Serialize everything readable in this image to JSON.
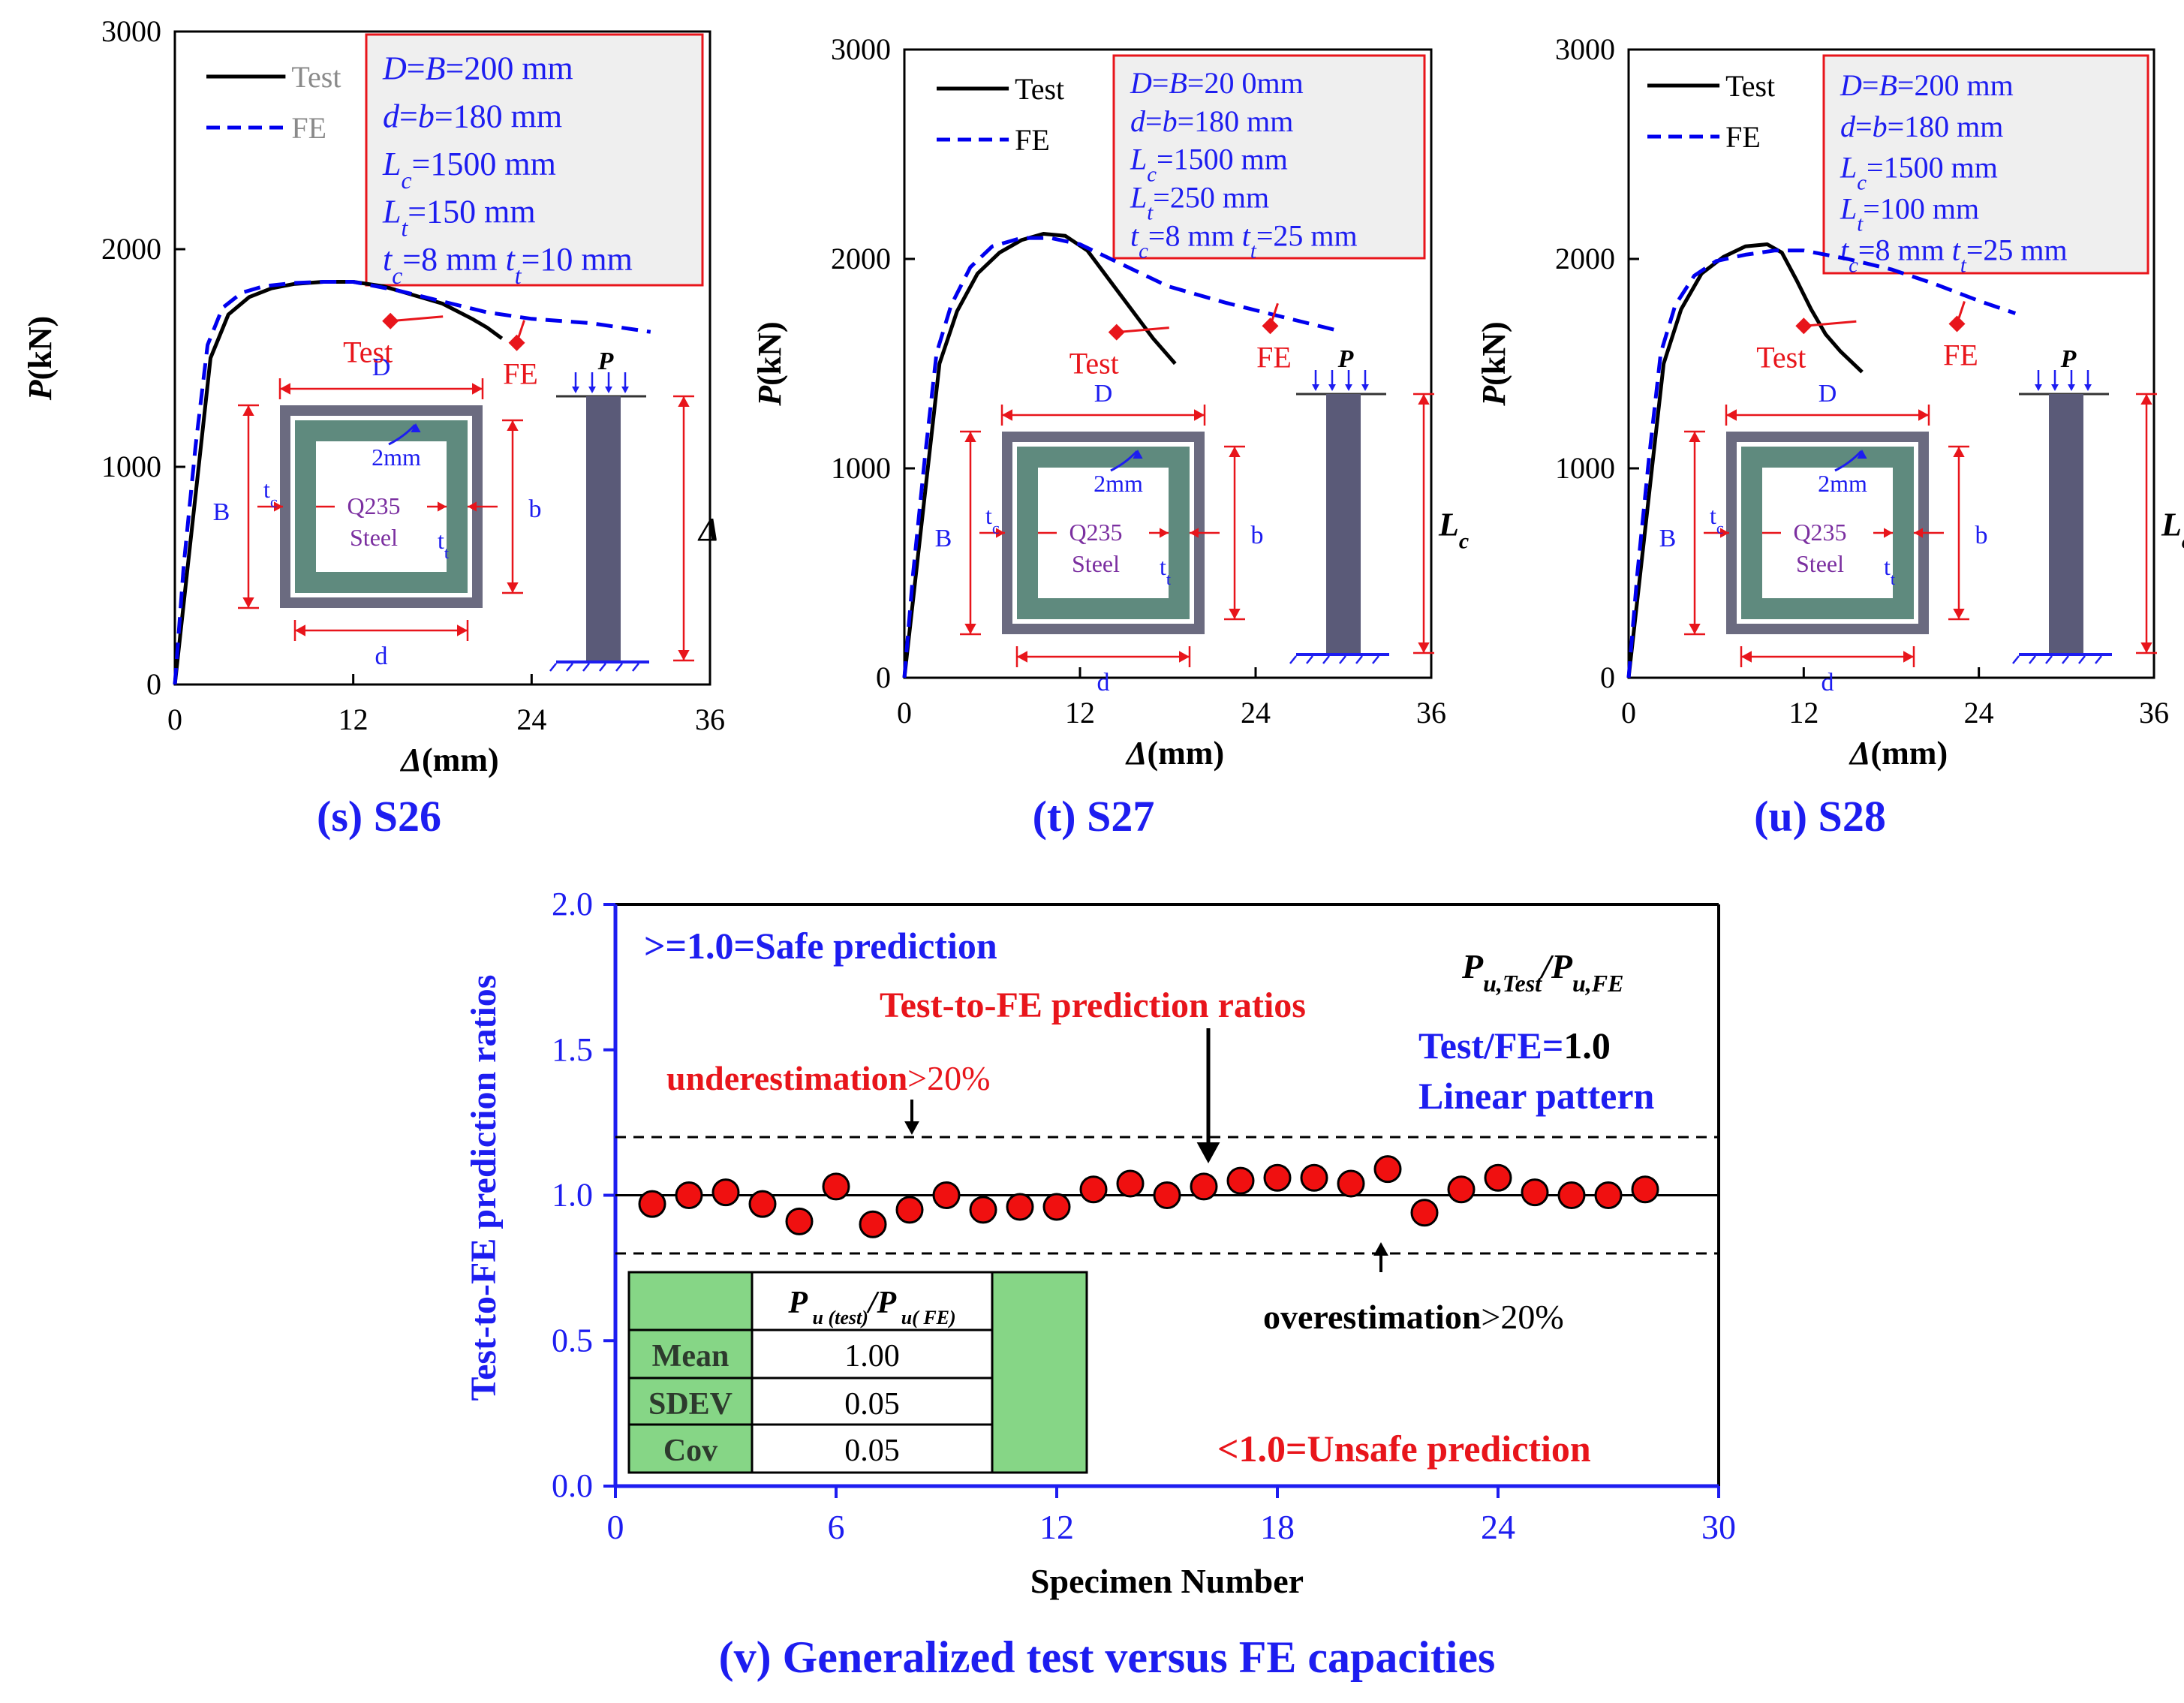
{
  "colors": {
    "test": "#000000",
    "fe": "#0000ee",
    "red": "#e8151b",
    "blue": "#1d1df0",
    "boxfill": "#efefef",
    "steel": "#5f8a7e",
    "outer": "#6b6b80",
    "table_green": "#86d686",
    "purple": "#7b2fa0",
    "col": "#5a5a78"
  },
  "chart_data": [
    {
      "id": "s",
      "type": "line",
      "caption": "(s) S26",
      "xlabel": "Δ(mm)",
      "ylabel": "P(kN)",
      "xlim": [
        0,
        36
      ],
      "ylim": [
        0,
        3000
      ],
      "xticks": [
        "0",
        "12",
        "24",
        "36"
      ],
      "yticks": [
        "0",
        "1000",
        "2000",
        "3000"
      ],
      "legend": {
        "test": "Test",
        "fe": "FE"
      },
      "info": [
        "D=B=200 mm",
        "d=b=180 mm",
        "Lc=1500 mm",
        "Lt=150 mm",
        "tc=8 mm tt=10 mm"
      ],
      "series": [
        {
          "name": "Test",
          "style": "solid",
          "x": [
            0,
            0.8,
            1.6,
            2.4,
            3.6,
            5,
            6.5,
            8,
            10,
            12,
            14,
            16,
            18,
            20,
            21,
            22
          ],
          "y": [
            0,
            500,
            1000,
            1500,
            1700,
            1780,
            1820,
            1840,
            1850,
            1850,
            1830,
            1790,
            1750,
            1680,
            1640,
            1590
          ]
        },
        {
          "name": "FE",
          "style": "dashed",
          "x": [
            0,
            0.6,
            1.4,
            2.2,
            3.2,
            4.5,
            6,
            8,
            10,
            12,
            15,
            18,
            21,
            24,
            28,
            32
          ],
          "y": [
            0,
            550,
            1100,
            1560,
            1730,
            1800,
            1830,
            1845,
            1850,
            1850,
            1810,
            1760,
            1710,
            1680,
            1660,
            1620
          ]
        }
      ],
      "annotations": [
        {
          "text": "Test",
          "x": 14.5,
          "y": 1670
        },
        {
          "text": "FE",
          "x": 23,
          "y": 1570
        }
      ],
      "inset": {
        "D": "D",
        "B": "B",
        "d": "d",
        "b": "b",
        "tc": "tc",
        "tt": "tt",
        "gap": "2mm",
        "material": [
          "Q235",
          "Steel"
        ],
        "load": "P",
        "length": "Δ"
      }
    },
    {
      "id": "t",
      "type": "line",
      "caption": "(t) S27",
      "xlabel": "Δ(mm)",
      "ylabel": "P(kN)",
      "xlim": [
        0,
        36
      ],
      "ylim": [
        0,
        3000
      ],
      "xticks": [
        "0",
        "12",
        "24",
        "36"
      ],
      "yticks": [
        "0",
        "1000",
        "2000",
        "3000"
      ],
      "legend": {
        "test": "Test",
        "fe": "FE"
      },
      "info": [
        "D=B=20 0mm",
        "d=b=180 mm",
        "Lc=1500 mm",
        "Lt=250 mm",
        "tc=8 mm tt=25 mm"
      ],
      "series": [
        {
          "name": "Test",
          "style": "solid",
          "x": [
            0,
            0.8,
            1.6,
            2.4,
            3.6,
            5,
            6.5,
            8,
            9.5,
            11,
            12.5,
            14,
            15.5,
            17,
            18.5
          ],
          "y": [
            0,
            500,
            1000,
            1500,
            1750,
            1930,
            2030,
            2090,
            2120,
            2110,
            2040,
            1900,
            1760,
            1620,
            1500
          ]
        },
        {
          "name": "FE",
          "style": "dashed",
          "x": [
            0,
            0.6,
            1.4,
            2.2,
            3.2,
            4.5,
            6,
            8,
            10,
            12,
            15,
            18,
            22,
            26,
            29.5
          ],
          "y": [
            0,
            500,
            1050,
            1550,
            1780,
            1960,
            2060,
            2100,
            2100,
            2070,
            1970,
            1870,
            1790,
            1720,
            1660
          ]
        }
      ],
      "annotations": [
        {
          "text": "Test",
          "x": 14.5,
          "y": 1650
        },
        {
          "text": "FE",
          "x": 25,
          "y": 1680
        }
      ],
      "inset": {
        "D": "D",
        "B": "B",
        "d": "d",
        "b": "b",
        "tc": "tc",
        "tt": "tt",
        "gap": "2mm",
        "material": [
          "Q235",
          "Steel"
        ],
        "load": "P",
        "length": "Lc"
      }
    },
    {
      "id": "u",
      "type": "line",
      "caption": "(u) S28",
      "xlabel": "Δ(mm)",
      "ylabel": "P(kN)",
      "xlim": [
        0,
        36
      ],
      "ylim": [
        0,
        3000
      ],
      "xticks": [
        "0",
        "12",
        "24",
        "36"
      ],
      "yticks": [
        "0",
        "1000",
        "2000",
        "3000"
      ],
      "legend": {
        "test": "Test",
        "fe": "FE"
      },
      "info": [
        "D=B=200 mm",
        "d=b=180 mm",
        "Lc=1500 mm",
        "Lt=100 mm",
        "tc=8 mm tt=25 mm"
      ],
      "series": [
        {
          "name": "Test",
          "style": "solid",
          "x": [
            0,
            0.8,
            1.6,
            2.4,
            3.6,
            5,
            6.5,
            8,
            9.5,
            10.5,
            11.5,
            12.5,
            13.5,
            14.5,
            16
          ],
          "y": [
            0,
            500,
            1000,
            1500,
            1760,
            1930,
            2010,
            2060,
            2070,
            2030,
            1900,
            1760,
            1640,
            1560,
            1460
          ]
        },
        {
          "name": "FE",
          "style": "dashed",
          "x": [
            0,
            0.6,
            1.4,
            2.2,
            3.2,
            4.5,
            6,
            8,
            10,
            12,
            15,
            18,
            21,
            24,
            26.5
          ],
          "y": [
            0,
            500,
            1050,
            1550,
            1780,
            1920,
            1990,
            2020,
            2040,
            2040,
            2000,
            1950,
            1880,
            1800,
            1740
          ]
        }
      ],
      "annotations": [
        {
          "text": "Test",
          "x": 12,
          "y": 1680
        },
        {
          "text": "FE",
          "x": 22.5,
          "y": 1690
        }
      ],
      "inset": {
        "D": "D",
        "B": "B",
        "d": "d",
        "b": "b",
        "tc": "tc",
        "tt": "tt",
        "gap": "2mm",
        "material": [
          "Q235",
          "Steel"
        ],
        "load": "P",
        "length": "Lc"
      }
    },
    {
      "id": "v",
      "type": "scatter",
      "caption": "(v) Generalized test versus FE capacities",
      "xlabel": "Specimen Number",
      "ylabel": "Test-to-FE prediction ratios",
      "xlim": [
        0,
        30
      ],
      "ylim": [
        0,
        2.0
      ],
      "xticks": [
        "0",
        "6",
        "12",
        "18",
        "24",
        "30"
      ],
      "yticks": [
        "0.0",
        "0.5",
        "1.0",
        "1.5",
        "2.0"
      ],
      "reference_lines": {
        "unity": 1.0,
        "upper": 1.2,
        "lower": 0.8
      },
      "x": [
        1,
        2,
        3,
        4,
        5,
        6,
        7,
        8,
        9,
        10,
        11,
        12,
        13,
        14,
        15,
        16,
        17,
        18,
        19,
        20,
        21,
        22,
        23,
        24,
        25,
        26,
        27,
        28
      ],
      "values": [
        0.97,
        1.0,
        1.01,
        0.97,
        0.91,
        1.03,
        0.9,
        0.95,
        1.0,
        0.95,
        0.96,
        0.96,
        1.02,
        1.04,
        1.0,
        1.03,
        1.05,
        1.06,
        1.06,
        1.04,
        1.09,
        0.94,
        1.02,
        1.06,
        1.01,
        1.0,
        1.0,
        1.02
      ],
      "texts": {
        "safe": ">=1.0=Safe prediction",
        "unsafe": "<1.0=Unsafe prediction",
        "ratio_label": "Pu,Test/Pu,FE",
        "ratio_title": "Test-to-FE prediction  ratios",
        "under_bold": "underestimation",
        "under_rest": ">20%",
        "over_bold": "overestimation",
        "over_rest": ">20%",
        "unity_a": "Test/FE=",
        "unity_b": "1.0",
        "linear": "Linear pattern"
      },
      "table": {
        "header": "Pu (test)/Pu( FE)",
        "rows": [
          {
            "label": "Mean",
            "value": "1.00"
          },
          {
            "label": "SDEV",
            "value": "0.05"
          },
          {
            "label": "Cov",
            "value": "0.05"
          }
        ]
      }
    }
  ]
}
